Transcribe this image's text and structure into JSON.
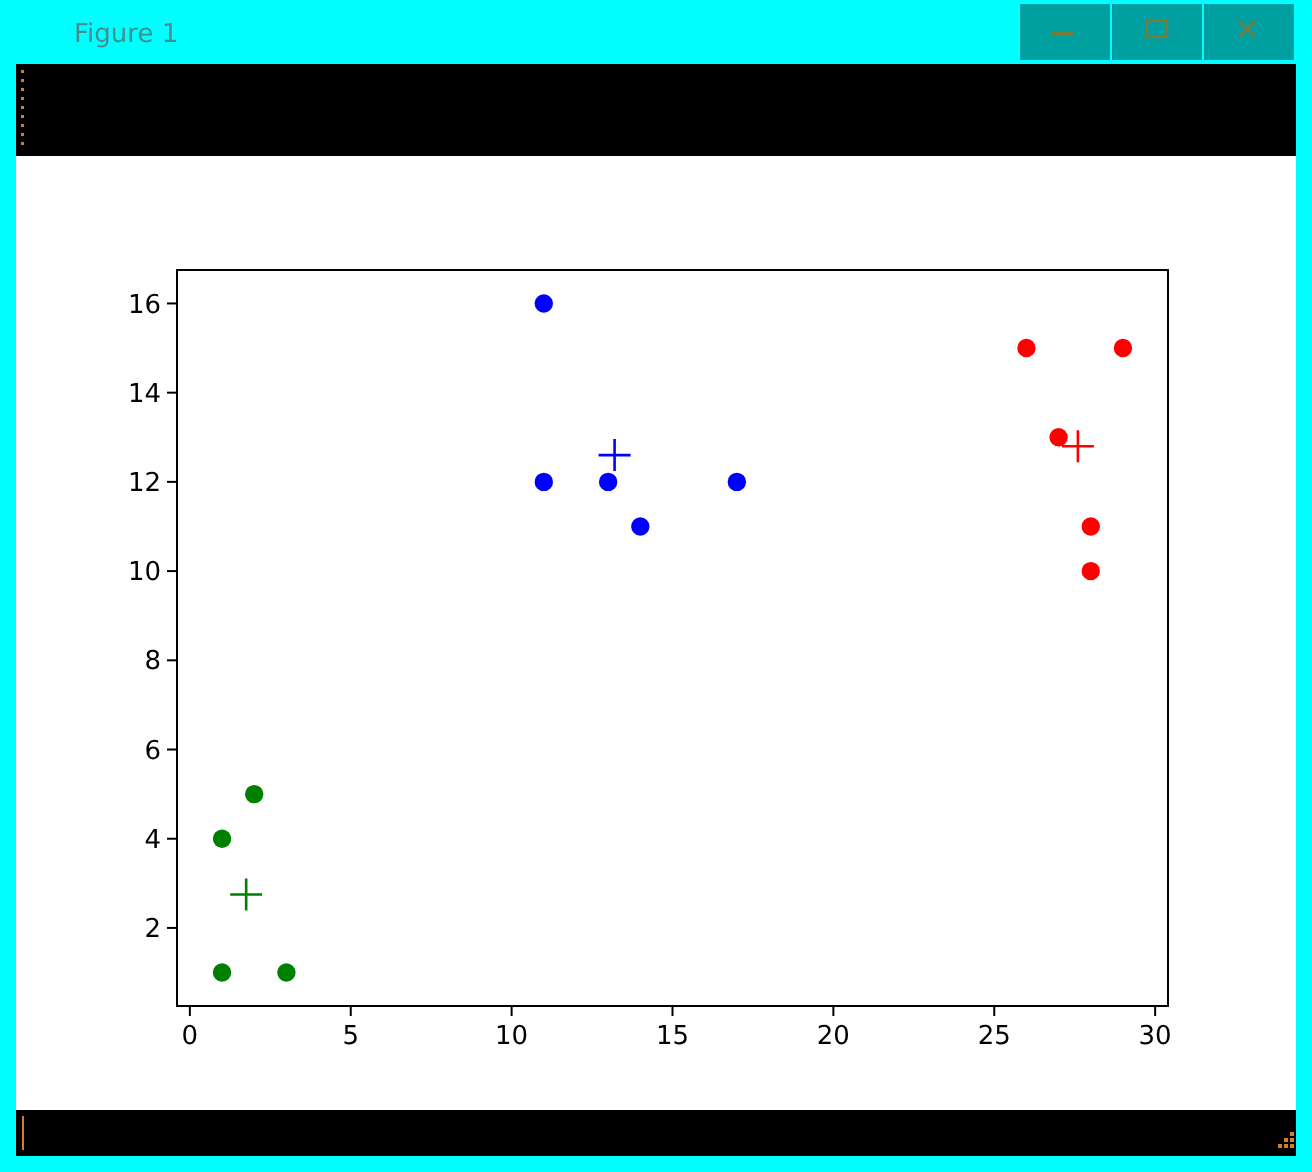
{
  "chart_data": {
    "type": "scatter",
    "annotations": [
      "Figure 1"
    ],
    "xlim": [
      -0.4,
      30.4
    ],
    "ylim": [
      0.25,
      16.75
    ],
    "xticks": [
      0,
      5,
      10,
      15,
      20,
      25,
      30
    ],
    "yticks": [
      2,
      4,
      6,
      8,
      10,
      12,
      14,
      16
    ],
    "series": [
      {
        "color": "#008000",
        "marker": "circle",
        "x": [
          1,
          3,
          1,
          2
        ],
        "values": [
          1,
          1,
          4,
          5
        ]
      },
      {
        "color": "#0000ff",
        "marker": "circle",
        "x": [
          11,
          11,
          13,
          17,
          14
        ],
        "values": [
          16,
          12,
          12,
          12,
          11
        ]
      },
      {
        "color": "#ff0000",
        "marker": "circle",
        "x": [
          26,
          29,
          27,
          28,
          28
        ],
        "values": [
          15,
          15,
          13,
          11,
          10
        ]
      },
      {
        "color": "#008000",
        "marker": "cross",
        "x": [
          1.75
        ],
        "values": [
          2.75
        ]
      },
      {
        "color": "#0000ff",
        "marker": "cross",
        "x": [
          13.2
        ],
        "values": [
          12.6
        ]
      },
      {
        "color": "#ff0000",
        "marker": "cross",
        "x": [
          27.6
        ],
        "values": [
          12.8
        ]
      }
    ]
  }
}
